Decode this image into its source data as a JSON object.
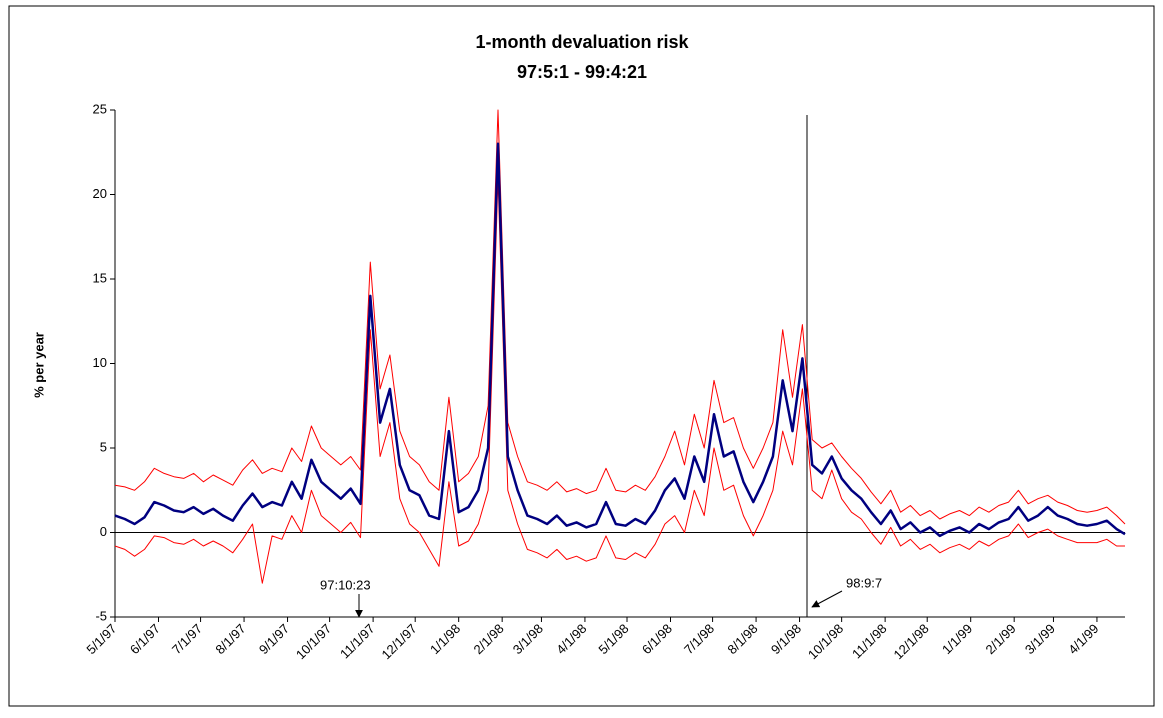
{
  "chart_data": {
    "type": "line",
    "title": "1-month devaluation risk",
    "subtitle": "97:5:1 - 99:4:21",
    "y_label": "% per year",
    "annotations": [
      "97:10:23",
      "98:9:7"
    ],
    "x": [
      "5/1/97",
      "5/8/97",
      "5/15/97",
      "5/22/97",
      "5/29/97",
      "6/5/97",
      "6/12/97",
      "6/19/97",
      "6/26/97",
      "7/3/97",
      "7/10/97",
      "7/17/97",
      "7/24/97",
      "7/31/97",
      "8/7/97",
      "8/14/97",
      "8/21/97",
      "8/28/97",
      "9/4/97",
      "9/11/97",
      "9/18/97",
      "9/25/97",
      "10/2/97",
      "10/9/97",
      "10/16/97",
      "10/23/97",
      "10/30/97",
      "11/6/97",
      "11/13/97",
      "11/20/97",
      "11/27/97",
      "12/4/97",
      "12/11/97",
      "12/18/97",
      "12/25/97",
      "1/1/98",
      "1/8/98",
      "1/15/98",
      "1/22/98",
      "1/29/98",
      "2/5/98",
      "2/12/98",
      "2/19/98",
      "2/26/98",
      "3/5/98",
      "3/12/98",
      "3/19/98",
      "3/26/98",
      "4/2/98",
      "4/9/98",
      "4/16/98",
      "4/23/98",
      "4/30/98",
      "5/7/98",
      "5/14/98",
      "5/21/98",
      "5/28/98",
      "6/4/98",
      "6/11/98",
      "6/18/98",
      "6/25/98",
      "7/2/98",
      "7/9/98",
      "7/16/98",
      "7/23/98",
      "7/30/98",
      "8/6/98",
      "8/13/98",
      "8/20/98",
      "8/27/98",
      "9/3/98",
      "9/10/98",
      "9/17/98",
      "9/24/98",
      "10/1/98",
      "10/8/98",
      "10/15/98",
      "10/22/98",
      "10/29/98",
      "11/5/98",
      "11/12/98",
      "11/19/98",
      "11/26/98",
      "12/3/98",
      "12/10/98",
      "12/17/98",
      "12/24/98",
      "12/31/98",
      "1/7/99",
      "1/14/99",
      "1/21/99",
      "1/28/99",
      "2/4/99",
      "2/11/99",
      "2/18/99",
      "2/25/99",
      "3/4/99",
      "3/11/99",
      "3/18/99",
      "3/25/99",
      "4/1/99",
      "4/8/99",
      "4/15/99",
      "4/21/99"
    ],
    "series": [
      {
        "color": "#ff0000",
        "width": 1,
        "values": [
          2.8,
          2.7,
          2.5,
          3.0,
          3.8,
          3.5,
          3.3,
          3.2,
          3.5,
          3.0,
          3.4,
          3.1,
          2.8,
          3.7,
          4.3,
          3.5,
          3.8,
          3.6,
          5.0,
          4.2,
          6.3,
          5.0,
          4.5,
          4.0,
          4.5,
          3.7,
          16.0,
          8.5,
          10.5,
          6.0,
          4.5,
          4.0,
          3.0,
          2.5,
          8.0,
          3.0,
          3.5,
          4.5,
          7.5,
          25.0,
          6.5,
          4.5,
          3.0,
          2.8,
          2.5,
          3.0,
          2.4,
          2.6,
          2.3,
          2.5,
          3.8,
          2.5,
          2.4,
          2.8,
          2.5,
          3.3,
          4.5,
          6.0,
          4.0,
          7.0,
          5.0,
          9.0,
          6.5,
          6.8,
          5.0,
          3.8,
          5.0,
          6.5,
          12.0,
          8.0,
          12.3,
          5.5,
          5.0,
          5.3,
          4.5,
          3.8,
          3.2,
          2.4,
          1.7,
          2.5,
          1.2,
          1.6,
          1.0,
          1.3,
          0.8,
          1.1,
          1.3,
          1.0,
          1.5,
          1.2,
          1.6,
          1.8,
          2.5,
          1.7,
          2.0,
          2.2,
          1.8,
          1.6,
          1.3,
          1.2,
          1.3,
          1.5,
          1.0,
          0.5
        ]
      },
      {
        "color": "#ff0000",
        "width": 1,
        "values": [
          -0.8,
          -1.0,
          -1.4,
          -1.0,
          -0.2,
          -0.3,
          -0.6,
          -0.7,
          -0.4,
          -0.8,
          -0.5,
          -0.8,
          -1.2,
          -0.4,
          0.5,
          -3.0,
          -0.2,
          -0.4,
          1.0,
          0.0,
          2.5,
          1.0,
          0.5,
          0.0,
          0.6,
          -0.3,
          12.0,
          4.5,
          6.5,
          2.0,
          0.5,
          0.0,
          -1.0,
          -2.0,
          3.0,
          -0.8,
          -0.5,
          0.5,
          2.5,
          21.0,
          2.5,
          0.5,
          -1.0,
          -1.2,
          -1.5,
          -1.0,
          -1.6,
          -1.4,
          -1.7,
          -1.5,
          -0.2,
          -1.5,
          -1.6,
          -1.2,
          -1.5,
          -0.7,
          0.5,
          1.0,
          0.0,
          2.5,
          1.0,
          5.0,
          2.5,
          2.8,
          1.0,
          -0.2,
          1.0,
          2.5,
          6.0,
          4.0,
          8.5,
          2.5,
          2.0,
          3.7,
          2.0,
          1.2,
          0.8,
          0.0,
          -0.7,
          0.3,
          -0.8,
          -0.4,
          -1.0,
          -0.7,
          -1.2,
          -0.9,
          -0.7,
          -1.0,
          -0.5,
          -0.8,
          -0.4,
          -0.2,
          0.5,
          -0.3,
          0.0,
          0.2,
          -0.2,
          -0.4,
          -0.6,
          -0.6,
          -0.6,
          -0.4,
          -0.8,
          -0.8
        ]
      },
      {
        "color": "#000080",
        "width": 2.5,
        "values": [
          1.0,
          0.8,
          0.5,
          0.9,
          1.8,
          1.6,
          1.3,
          1.2,
          1.5,
          1.1,
          1.4,
          1.0,
          0.7,
          1.6,
          2.3,
          1.5,
          1.8,
          1.6,
          3.0,
          2.0,
          4.3,
          3.0,
          2.5,
          2.0,
          2.6,
          1.7,
          14.0,
          6.5,
          8.5,
          4.0,
          2.5,
          2.2,
          1.0,
          0.8,
          6.0,
          1.2,
          1.5,
          2.5,
          5.0,
          23.0,
          4.5,
          2.5,
          1.0,
          0.8,
          0.5,
          1.0,
          0.4,
          0.6,
          0.3,
          0.5,
          1.8,
          0.5,
          0.4,
          0.8,
          0.5,
          1.3,
          2.5,
          3.2,
          2.0,
          4.5,
          3.0,
          7.0,
          4.5,
          4.8,
          3.0,
          1.8,
          3.0,
          4.5,
          9.0,
          6.0,
          10.3,
          4.0,
          3.5,
          4.5,
          3.2,
          2.5,
          2.0,
          1.2,
          0.5,
          1.3,
          0.2,
          0.6,
          0.0,
          0.3,
          -0.2,
          0.1,
          0.3,
          0.0,
          0.5,
          0.2,
          0.6,
          0.8,
          1.5,
          0.7,
          1.0,
          1.5,
          1.0,
          0.8,
          0.5,
          0.4,
          0.5,
          0.7,
          0.2,
          -0.1
        ]
      }
    ],
    "xlim": [
      "5/1/97",
      "4/21/99"
    ],
    "xticks": [
      "5/1/97",
      "6/1/97",
      "7/1/97",
      "8/1/97",
      "9/1/97",
      "10/1/97",
      "11/1/97",
      "12/1/97",
      "1/1/98",
      "2/1/98",
      "3/1/98",
      "4/1/98",
      "5/1/98",
      "6/1/98",
      "7/1/98",
      "8/1/98",
      "9/1/98",
      "10/1/98",
      "11/1/98",
      "12/1/98",
      "1/1/99",
      "2/1/99",
      "3/1/99",
      "4/1/99"
    ],
    "ylim": [
      -5,
      25
    ],
    "yticks": [
      -5,
      0,
      5,
      10,
      15,
      20,
      25
    ],
    "grid": false
  }
}
